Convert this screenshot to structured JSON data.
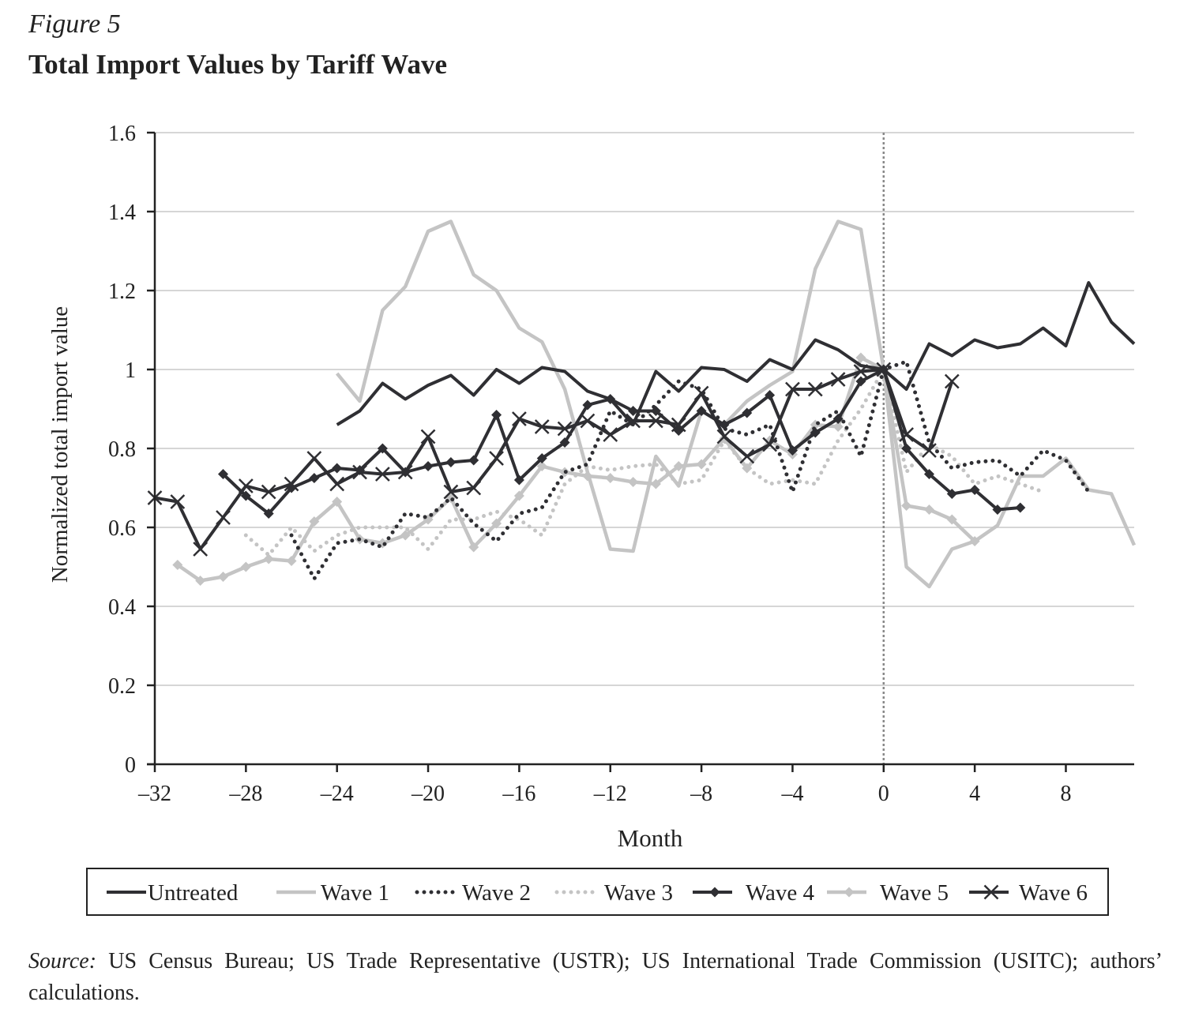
{
  "figure": {
    "label": "Figure 5",
    "title": "Total Import Values by Tariff Wave",
    "source_label": "Source:",
    "source_text": " US Census Bureau; US Trade Representative (USTR); US International Trade Commission (USITC); authors’ calculations."
  },
  "chart_data": {
    "type": "line",
    "title": "Total Import Values by Tariff Wave",
    "xlabel": "Month",
    "ylabel": "Normalized total import value",
    "xlim": [
      -32,
      11
    ],
    "ylim": [
      0,
      1.6
    ],
    "xticks": [
      -32,
      -28,
      -24,
      -20,
      -16,
      -12,
      -8,
      -4,
      0,
      4,
      8
    ],
    "xtick_labels": [
      "–32",
      "–28",
      "–24",
      "–20",
      "–16",
      "–12",
      "–8",
      "–4",
      "0",
      "4",
      "8"
    ],
    "yticks": [
      0,
      0.2,
      0.4,
      0.6,
      0.8,
      1,
      1.2,
      1.4,
      1.6
    ],
    "ytick_labels": [
      "0",
      "0.2",
      "0.4",
      "0.6",
      "0.8",
      "1",
      "1.2",
      "1.4",
      "1.6"
    ],
    "grid": "horizontal",
    "reference_line_x": 0,
    "legend": "bottom",
    "colors": {
      "dark": "#2f2f33",
      "light": "#c4c4c4",
      "axis": "#222222",
      "grid": "#d6d6d6"
    },
    "series": [
      {
        "name": "Untreated",
        "color": "#2f2f33",
        "style": "solid",
        "marker": "none",
        "x": [
          -24,
          -23,
          -22,
          -21,
          -20,
          -19,
          -18,
          -17,
          -16,
          -15,
          -14,
          -13,
          -12,
          -11,
          -10,
          -9,
          -8,
          -7,
          -6,
          -5,
          -4,
          -3,
          -2,
          -1,
          0,
          1,
          2,
          3,
          4,
          5,
          6,
          7,
          8,
          9,
          10,
          11
        ],
        "y": [
          0.86,
          0.895,
          0.965,
          0.925,
          0.96,
          0.985,
          0.935,
          1.0,
          0.965,
          1.005,
          0.995,
          0.945,
          0.925,
          0.86,
          0.995,
          0.945,
          1.005,
          1.0,
          0.97,
          1.025,
          1.0,
          1.075,
          1.05,
          1.01,
          1.0,
          0.95,
          1.065,
          1.035,
          1.075,
          1.055,
          1.065,
          1.105,
          1.06,
          1.22,
          1.12,
          1.065
        ]
      },
      {
        "name": "Wave 1",
        "color": "#c4c4c4",
        "style": "solid",
        "marker": "none",
        "x": [
          -24,
          -23,
          -22,
          -21,
          -20,
          -19,
          -18,
          -17,
          -16,
          -15,
          -14,
          -13,
          -12,
          -11,
          -10,
          -9,
          -8,
          -7,
          -6,
          -5,
          -4,
          -3,
          -2,
          -1,
          0,
          1,
          2,
          3,
          4,
          5,
          6,
          7,
          8,
          9,
          10,
          11
        ],
        "y": [
          0.99,
          0.92,
          1.15,
          1.21,
          1.35,
          1.375,
          1.24,
          1.2,
          1.105,
          1.07,
          0.95,
          0.74,
          0.545,
          0.54,
          0.78,
          0.705,
          0.895,
          0.86,
          0.92,
          0.96,
          0.995,
          1.255,
          1.375,
          1.355,
          1.0,
          0.5,
          0.45,
          0.545,
          0.565,
          0.605,
          0.73,
          0.73,
          0.775,
          0.695,
          0.685,
          0.555
        ]
      },
      {
        "name": "Wave 2",
        "color": "#2f2f33",
        "style": "dotted",
        "marker": "none",
        "x": [
          -26,
          -25,
          -24,
          -23,
          -22,
          -21,
          -20,
          -19,
          -18,
          -17,
          -16,
          -15,
          -14,
          -13,
          -12,
          -11,
          -10,
          -9,
          -8,
          -7,
          -6,
          -5,
          -4,
          -3,
          -2,
          -1,
          0,
          1,
          2,
          3,
          4,
          5,
          6,
          7,
          8,
          9
        ],
        "y": [
          0.58,
          0.47,
          0.56,
          0.57,
          0.55,
          0.635,
          0.625,
          0.675,
          0.61,
          0.565,
          0.635,
          0.65,
          0.74,
          0.76,
          0.895,
          0.86,
          0.91,
          0.97,
          0.95,
          0.85,
          0.835,
          0.86,
          0.69,
          0.86,
          0.895,
          0.78,
          1.0,
          1.02,
          0.815,
          0.75,
          0.765,
          0.77,
          0.73,
          0.795,
          0.77,
          0.69
        ]
      },
      {
        "name": "Wave 3",
        "color": "#c4c4c4",
        "style": "dotted",
        "marker": "none",
        "x": [
          -28,
          -27,
          -26,
          -25,
          -24,
          -23,
          -22,
          -21,
          -20,
          -19,
          -18,
          -17,
          -16,
          -15,
          -14,
          -13,
          -12,
          -11,
          -10,
          -9,
          -8,
          -7,
          -6,
          -5,
          -4,
          -3,
          -2,
          -1,
          0,
          1,
          2,
          3,
          4,
          5,
          6,
          7
        ],
        "y": [
          0.58,
          0.53,
          0.6,
          0.54,
          0.58,
          0.6,
          0.6,
          0.6,
          0.545,
          0.62,
          0.62,
          0.64,
          0.62,
          0.58,
          0.71,
          0.755,
          0.745,
          0.755,
          0.76,
          0.71,
          0.72,
          0.82,
          0.75,
          0.71,
          0.72,
          0.71,
          0.82,
          0.9,
          1.0,
          0.74,
          0.81,
          0.78,
          0.71,
          0.73,
          0.71,
          0.69
        ]
      },
      {
        "name": "Wave 4",
        "color": "#2f2f33",
        "style": "solid",
        "marker": "diamond",
        "x": [
          -29,
          -28,
          -27,
          -26,
          -25,
          -24,
          -23,
          -22,
          -21,
          -20,
          -19,
          -18,
          -17,
          -16,
          -15,
          -14,
          -13,
          -12,
          -11,
          -10,
          -9,
          -8,
          -7,
          -6,
          -5,
          -4,
          -3,
          -2,
          -1,
          0,
          1,
          2,
          3,
          4,
          5,
          6
        ],
        "y": [
          0.735,
          0.68,
          0.635,
          0.7,
          0.725,
          0.75,
          0.745,
          0.8,
          0.74,
          0.755,
          0.765,
          0.77,
          0.885,
          0.72,
          0.775,
          0.815,
          0.91,
          0.925,
          0.895,
          0.895,
          0.845,
          0.895,
          0.86,
          0.89,
          0.935,
          0.795,
          0.84,
          0.875,
          0.97,
          1.0,
          0.8,
          0.735,
          0.685,
          0.695,
          0.645,
          0.65
        ]
      },
      {
        "name": "Wave 5",
        "color": "#c4c4c4",
        "style": "solid",
        "marker": "diamond",
        "x": [
          -31,
          -30,
          -29,
          -28,
          -27,
          -26,
          -25,
          -24,
          -23,
          -22,
          -21,
          -20,
          -19,
          -18,
          -17,
          -16,
          -15,
          -14,
          -13,
          -12,
          -11,
          -10,
          -9,
          -8,
          -7,
          -6,
          -5,
          -4,
          -3,
          -2,
          -1,
          0,
          1,
          2,
          3,
          4
        ],
        "y": [
          0.505,
          0.465,
          0.475,
          0.5,
          0.52,
          0.515,
          0.615,
          0.665,
          0.57,
          0.56,
          0.58,
          0.62,
          0.675,
          0.55,
          0.61,
          0.68,
          0.755,
          0.74,
          0.73,
          0.725,
          0.715,
          0.71,
          0.755,
          0.76,
          0.825,
          0.75,
          0.82,
          0.785,
          0.86,
          0.855,
          1.03,
          1.0,
          0.655,
          0.645,
          0.62,
          0.565
        ]
      },
      {
        "name": "Wave 6",
        "color": "#2f2f33",
        "style": "solid",
        "marker": "x",
        "x": [
          -32,
          -31,
          -30,
          -29,
          -28,
          -27,
          -26,
          -25,
          -24,
          -23,
          -22,
          -21,
          -20,
          -19,
          -18,
          -17,
          -16,
          -15,
          -14,
          -13,
          -12,
          -11,
          -10,
          -9,
          -8,
          -7,
          -6,
          -5,
          -4,
          -3,
          -2,
          -1,
          0,
          1,
          2,
          3
        ],
        "y": [
          0.675,
          0.665,
          0.545,
          0.625,
          0.705,
          0.69,
          0.71,
          0.775,
          0.71,
          0.74,
          0.735,
          0.74,
          0.83,
          0.69,
          0.7,
          0.775,
          0.875,
          0.855,
          0.85,
          0.87,
          0.835,
          0.87,
          0.87,
          0.86,
          0.94,
          0.83,
          0.78,
          0.81,
          0.95,
          0.95,
          0.975,
          0.995,
          1.0,
          0.835,
          0.795,
          0.97
        ]
      }
    ]
  }
}
